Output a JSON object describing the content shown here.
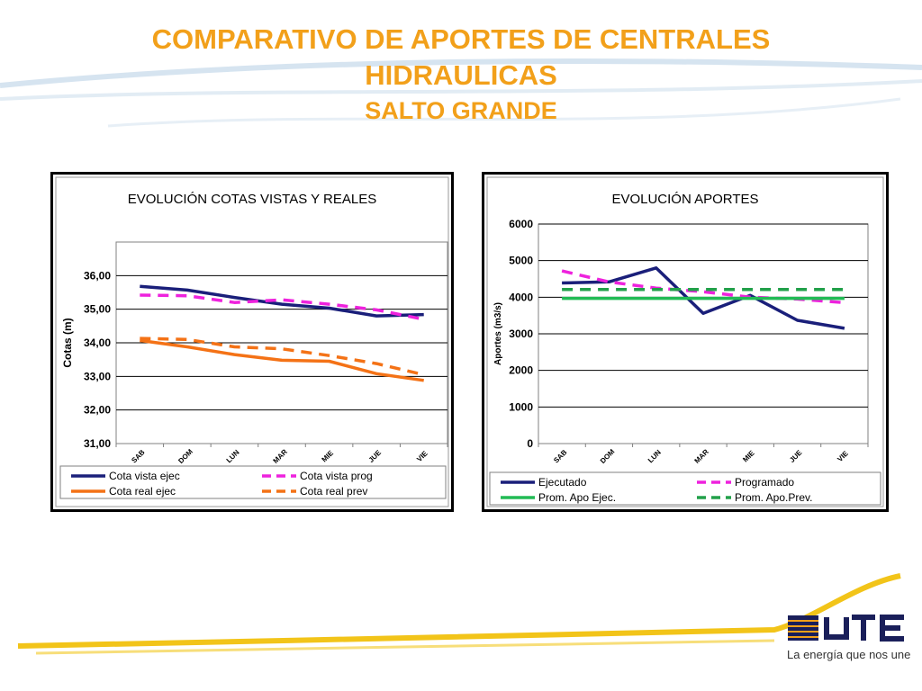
{
  "slide": {
    "title_line1": "COMPARATIVO DE APORTES DE CENTRALES",
    "title_line2": "HIDRAULICAS",
    "subtitle": "SALTO GRANDE",
    "title_color": "#f2a01a"
  },
  "logo": {
    "brand": "UTE",
    "tagline": "La energía que nos une"
  },
  "chart_data": [
    {
      "type": "line",
      "title": "EVOLUCIÓN  COTAS VISTAS Y REALES",
      "xlabel": "",
      "ylabel": "Cotas (m)",
      "categories": [
        "SAB",
        "DOM",
        "LUN",
        "MAR",
        "MIE",
        "JUE",
        "VIE"
      ],
      "ylim": [
        31,
        37
      ],
      "yticks": [
        "31,00",
        "32,00",
        "33,00",
        "34,00",
        "35,00",
        "36,00"
      ],
      "grid": true,
      "legend_position": "bottom",
      "series": [
        {
          "name": "Cota vista ejec",
          "color": "#1a1f7a",
          "dash": false,
          "values": [
            35.68,
            35.57,
            35.35,
            35.15,
            35.03,
            34.8,
            34.84
          ]
        },
        {
          "name": "Cota vista prog",
          "color": "#ee22dd",
          "dash": true,
          "values": [
            35.42,
            35.4,
            35.2,
            35.28,
            35.15,
            34.98,
            34.7
          ]
        },
        {
          "name": "Cota real ejec",
          "color": "#f47216",
          "dash": false,
          "values": [
            34.07,
            33.88,
            33.65,
            33.48,
            33.45,
            33.08,
            32.88
          ]
        },
        {
          "name": "Cota real prev",
          "color": "#f47216",
          "dash": true,
          "values": [
            34.13,
            34.1,
            33.88,
            33.82,
            33.62,
            33.38,
            33.05
          ]
        }
      ]
    },
    {
      "type": "line",
      "title": "EVOLUCIÓN  APORTES",
      "xlabel": "",
      "ylabel": "Aportes (m3/s)",
      "categories": [
        "SAB",
        "DOM",
        "LUN",
        "MAR",
        "MIE",
        "JUE",
        "VIE"
      ],
      "ylim": [
        0,
        6000
      ],
      "yticks": [
        "0",
        "1000",
        "2000",
        "3000",
        "4000",
        "5000",
        "6000"
      ],
      "grid": true,
      "legend_position": "bottom",
      "series": [
        {
          "name": "Ejecutado",
          "color": "#1a1f7a",
          "dash": false,
          "values": [
            4390,
            4420,
            4800,
            3560,
            4050,
            3370,
            3150
          ]
        },
        {
          "name": "Programado",
          "color": "#ee22dd",
          "dash": true,
          "values": [
            4720,
            4420,
            4250,
            4150,
            4000,
            3950,
            3850
          ]
        },
        {
          "name": "Prom. Apo Ejec.",
          "color": "#22bb55",
          "dash": false,
          "values": [
            3970,
            3970,
            3970,
            3970,
            3970,
            3970,
            3970
          ]
        },
        {
          "name": "Prom. Apo.Prev.",
          "color": "#22a04a",
          "dash": true,
          "values": [
            4210,
            4210,
            4210,
            4210,
            4210,
            4210,
            4210
          ]
        }
      ]
    }
  ]
}
